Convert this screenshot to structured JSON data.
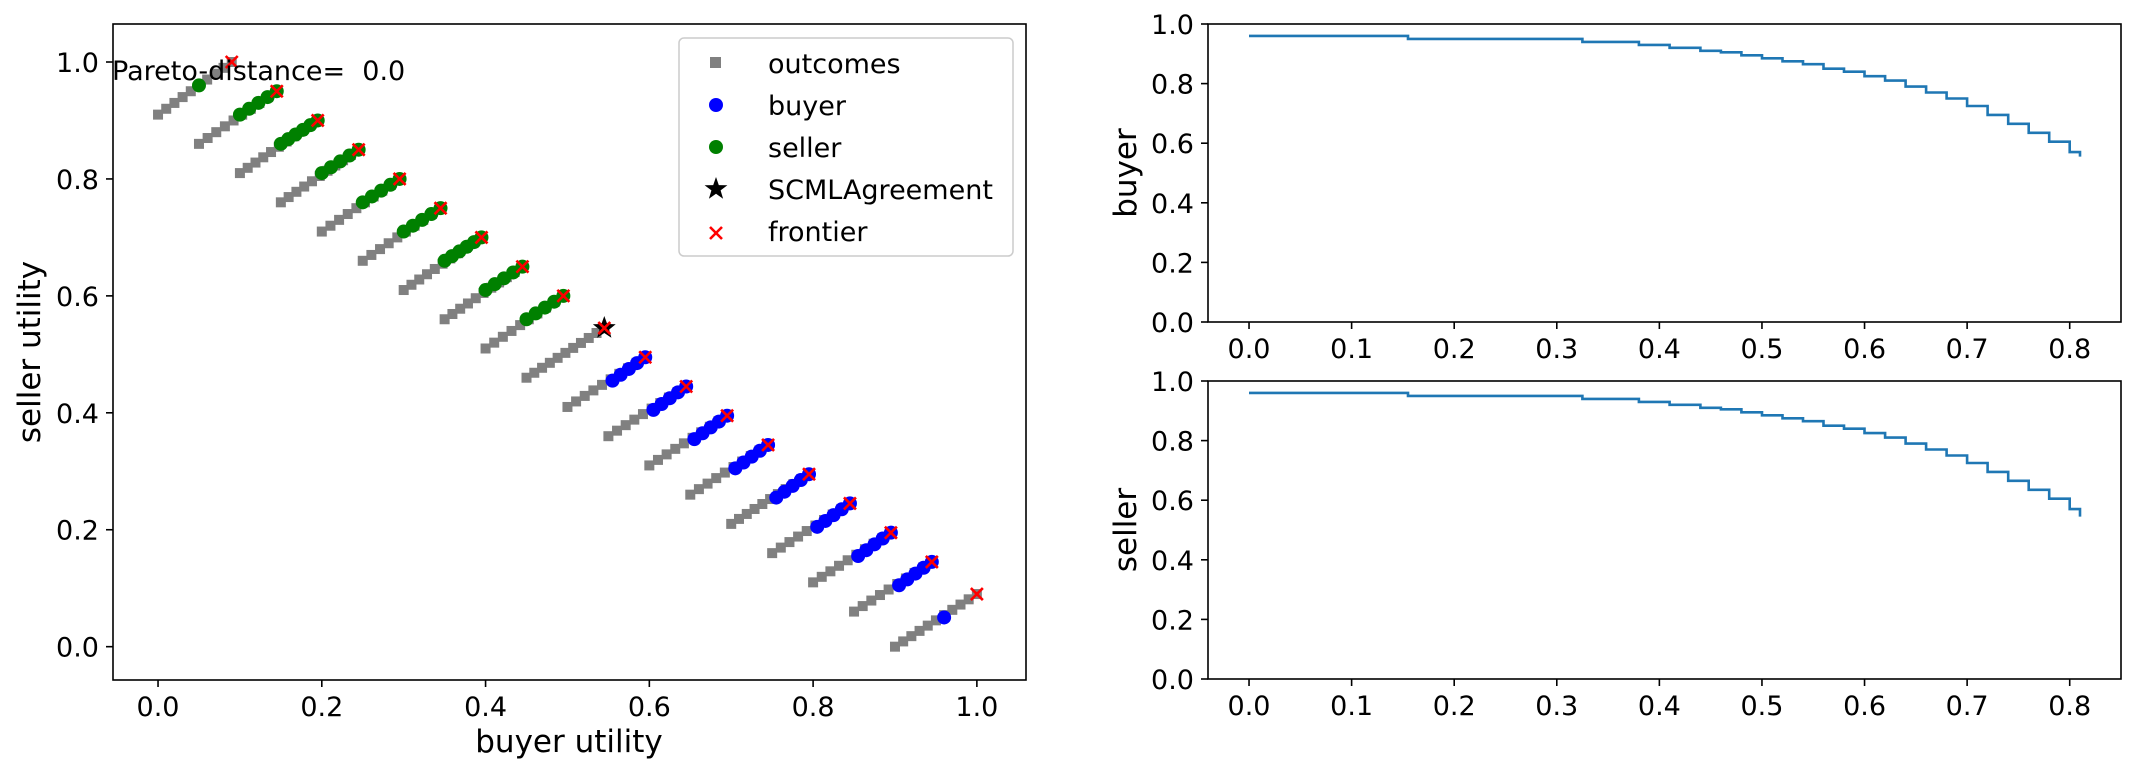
{
  "chart_data": [
    {
      "type": "scatter",
      "xlabel": "buyer utility",
      "ylabel": "seller utility",
      "xlim": [
        -0.055,
        1.06
      ],
      "ylim": [
        -0.057,
        1.065
      ],
      "xticks": [
        0.0,
        0.2,
        0.4,
        0.6,
        0.8,
        1.0
      ],
      "yticks": [
        0.0,
        0.2,
        0.4,
        0.6,
        0.8,
        1.0
      ],
      "xtick_labels": [
        "0.0",
        "0.2",
        "0.4",
        "0.6",
        "0.8",
        "1.0"
      ],
      "ytick_labels": [
        "0.0",
        "0.2",
        "0.4",
        "0.6",
        "0.8",
        "1.0"
      ],
      "annotation": "Pareto-distance=  0.0",
      "legend_position": "top-right",
      "legend": [
        {
          "label": "outcomes",
          "marker": "square",
          "color": "#808080"
        },
        {
          "label": "buyer",
          "marker": "circle",
          "color": "#0000ff"
        },
        {
          "label": "seller",
          "marker": "circle",
          "color": "#008000"
        },
        {
          "label": "SCMLAgreement",
          "marker": "star",
          "color": "#000000"
        },
        {
          "label": "frontier",
          "marker": "x",
          "color": "#ff0000"
        }
      ],
      "outcome_groups": [
        {
          "x": [
            0.0,
            0.09
          ],
          "y": [
            0.91,
            1.0
          ]
        },
        {
          "x": [
            0.05,
            0.145
          ],
          "y": [
            0.86,
            0.95
          ]
        },
        {
          "x": [
            0.1,
            0.195
          ],
          "y": [
            0.81,
            0.9
          ]
        },
        {
          "x": [
            0.15,
            0.245
          ],
          "y": [
            0.76,
            0.85
          ]
        },
        {
          "x": [
            0.2,
            0.295
          ],
          "y": [
            0.71,
            0.8
          ]
        },
        {
          "x": [
            0.25,
            0.345
          ],
          "y": [
            0.66,
            0.75
          ]
        },
        {
          "x": [
            0.3,
            0.395
          ],
          "y": [
            0.61,
            0.7
          ]
        },
        {
          "x": [
            0.35,
            0.445
          ],
          "y": [
            0.56,
            0.65
          ]
        },
        {
          "x": [
            0.4,
            0.495
          ],
          "y": [
            0.51,
            0.6
          ]
        },
        {
          "x": [
            0.45,
            0.545
          ],
          "y": [
            0.46,
            0.545
          ]
        },
        {
          "x": [
            0.5,
            0.595
          ],
          "y": [
            0.41,
            0.495
          ]
        },
        {
          "x": [
            0.55,
            0.645
          ],
          "y": [
            0.36,
            0.445
          ]
        },
        {
          "x": [
            0.6,
            0.695
          ],
          "y": [
            0.31,
            0.395
          ]
        },
        {
          "x": [
            0.65,
            0.745
          ],
          "y": [
            0.26,
            0.345
          ]
        },
        {
          "x": [
            0.7,
            0.795
          ],
          "y": [
            0.21,
            0.295
          ]
        },
        {
          "x": [
            0.75,
            0.845
          ],
          "y": [
            0.16,
            0.245
          ]
        },
        {
          "x": [
            0.8,
            0.895
          ],
          "y": [
            0.11,
            0.195
          ]
        },
        {
          "x": [
            0.85,
            0.945
          ],
          "y": [
            0.06,
            0.145
          ]
        },
        {
          "x": [
            0.9,
            1.0
          ],
          "y": [
            0.0,
            0.09
          ]
        }
      ],
      "seller_offer_groups": [
        {
          "x": [
            0.05,
            0.05
          ],
          "y": [
            0.96,
            0.96
          ]
        },
        {
          "x": [
            0.1,
            0.145
          ],
          "y": [
            0.91,
            0.95
          ]
        },
        {
          "x": [
            0.15,
            0.195
          ],
          "y": [
            0.86,
            0.9
          ]
        },
        {
          "x": [
            0.2,
            0.245
          ],
          "y": [
            0.81,
            0.85
          ]
        },
        {
          "x": [
            0.25,
            0.295
          ],
          "y": [
            0.76,
            0.8
          ]
        },
        {
          "x": [
            0.3,
            0.345
          ],
          "y": [
            0.71,
            0.75
          ]
        },
        {
          "x": [
            0.35,
            0.395
          ],
          "y": [
            0.66,
            0.7
          ]
        },
        {
          "x": [
            0.4,
            0.445
          ],
          "y": [
            0.61,
            0.65
          ]
        },
        {
          "x": [
            0.45,
            0.495
          ],
          "y": [
            0.56,
            0.6
          ]
        }
      ],
      "buyer_offer_groups": [
        {
          "x": [
            0.555,
            0.595
          ],
          "y": [
            0.455,
            0.495
          ]
        },
        {
          "x": [
            0.605,
            0.645
          ],
          "y": [
            0.405,
            0.445
          ]
        },
        {
          "x": [
            0.655,
            0.695
          ],
          "y": [
            0.355,
            0.395
          ]
        },
        {
          "x": [
            0.705,
            0.745
          ],
          "y": [
            0.305,
            0.345
          ]
        },
        {
          "x": [
            0.755,
            0.795
          ],
          "y": [
            0.255,
            0.295
          ]
        },
        {
          "x": [
            0.805,
            0.845
          ],
          "y": [
            0.205,
            0.245
          ]
        },
        {
          "x": [
            0.855,
            0.895
          ],
          "y": [
            0.155,
            0.195
          ]
        },
        {
          "x": [
            0.905,
            0.945
          ],
          "y": [
            0.105,
            0.145
          ]
        },
        {
          "x": [
            0.96,
            0.96
          ],
          "y": [
            0.05,
            0.05
          ]
        }
      ],
      "frontier": {
        "x": [
          0.09,
          0.145,
          0.195,
          0.245,
          0.295,
          0.345,
          0.395,
          0.445,
          0.495,
          0.545,
          0.595,
          0.645,
          0.695,
          0.745,
          0.795,
          0.845,
          0.895,
          0.945,
          1.0
        ],
        "y": [
          1.0,
          0.95,
          0.9,
          0.85,
          0.8,
          0.75,
          0.7,
          0.65,
          0.6,
          0.545,
          0.495,
          0.445,
          0.395,
          0.345,
          0.295,
          0.245,
          0.195,
          0.145,
          0.09
        ]
      },
      "agreement": {
        "x": 0.545,
        "y": 0.545
      }
    },
    {
      "type": "line",
      "ylabel": "buyer",
      "xlim": [
        -0.04,
        0.85
      ],
      "ylim": [
        0.0,
        1.0
      ],
      "xticks": [
        0.0,
        0.1,
        0.2,
        0.3,
        0.4,
        0.5,
        0.6,
        0.7,
        0.8
      ],
      "xtick_labels": [
        "0.0",
        "0.1",
        "0.2",
        "0.3",
        "0.4",
        "0.5",
        "0.6",
        "0.7",
        "0.8"
      ],
      "yticks": [
        0.0,
        0.2,
        0.4,
        0.6,
        0.8,
        1.0
      ],
      "ytick_labels": [
        "0.0",
        "0.2",
        "0.4",
        "0.6",
        "0.8",
        "1.0"
      ],
      "color": "#1f77b4",
      "step": true,
      "x": [
        0.0,
        0.155,
        0.325,
        0.38,
        0.41,
        0.44,
        0.46,
        0.48,
        0.5,
        0.52,
        0.54,
        0.56,
        0.58,
        0.6,
        0.62,
        0.64,
        0.66,
        0.68,
        0.7,
        0.72,
        0.74,
        0.76,
        0.78,
        0.8,
        0.81
      ],
      "y": [
        0.96,
        0.95,
        0.94,
        0.93,
        0.92,
        0.91,
        0.905,
        0.895,
        0.885,
        0.875,
        0.865,
        0.85,
        0.84,
        0.825,
        0.81,
        0.79,
        0.77,
        0.75,
        0.725,
        0.695,
        0.665,
        0.635,
        0.605,
        0.57,
        0.555
      ]
    },
    {
      "type": "line",
      "ylabel": "seller",
      "xlim": [
        -0.04,
        0.85
      ],
      "ylim": [
        0.0,
        1.0
      ],
      "xticks": [
        0.0,
        0.1,
        0.2,
        0.3,
        0.4,
        0.5,
        0.6,
        0.7,
        0.8
      ],
      "xtick_labels": [
        "0.0",
        "0.1",
        "0.2",
        "0.3",
        "0.4",
        "0.5",
        "0.6",
        "0.7",
        "0.8"
      ],
      "yticks": [
        0.0,
        0.2,
        0.4,
        0.6,
        0.8,
        1.0
      ],
      "ytick_labels": [
        "0.0",
        "0.2",
        "0.4",
        "0.6",
        "0.8",
        "1.0"
      ],
      "color": "#1f77b4",
      "step": true,
      "x": [
        0.0,
        0.155,
        0.325,
        0.38,
        0.41,
        0.44,
        0.46,
        0.48,
        0.5,
        0.52,
        0.54,
        0.56,
        0.58,
        0.6,
        0.62,
        0.64,
        0.66,
        0.68,
        0.7,
        0.72,
        0.74,
        0.76,
        0.78,
        0.8,
        0.81
      ],
      "y": [
        0.96,
        0.95,
        0.94,
        0.93,
        0.92,
        0.91,
        0.905,
        0.895,
        0.885,
        0.875,
        0.865,
        0.85,
        0.84,
        0.825,
        0.81,
        0.79,
        0.77,
        0.75,
        0.725,
        0.695,
        0.665,
        0.635,
        0.605,
        0.57,
        0.545
      ]
    }
  ]
}
